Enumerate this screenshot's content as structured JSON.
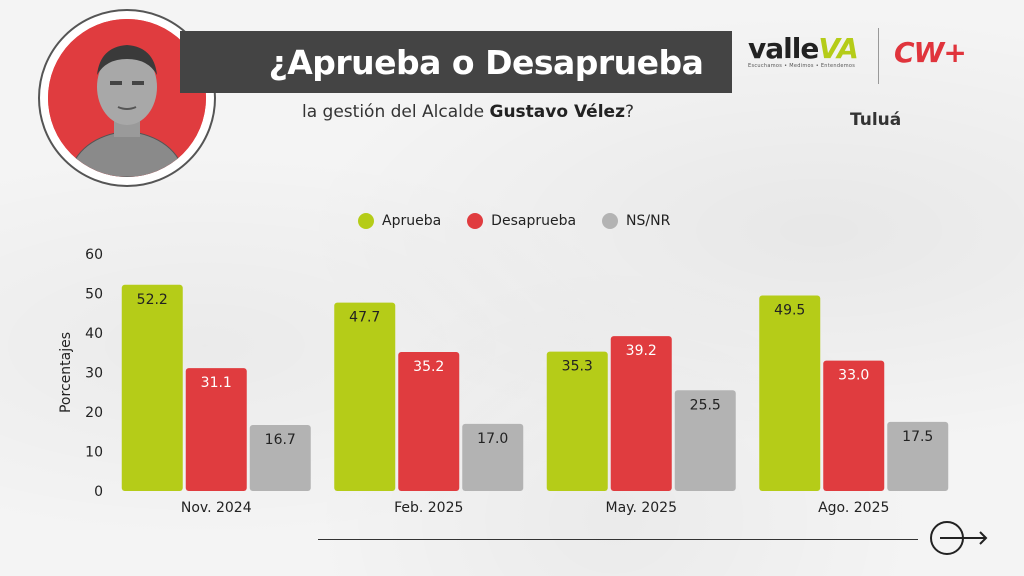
{
  "header": {
    "title": "¿Aprueba o Desaprueba",
    "subtitle_prefix": "la gestión del Alcalde ",
    "subtitle_name": "Gustavo Vélez",
    "subtitle_suffix": "?",
    "city": "Tuluá"
  },
  "logos": {
    "valle_word": "valle",
    "valle_va": "VA",
    "valle_tagline": "Escuchamos • Medimos • Entendemos",
    "cw": "CW+"
  },
  "colors": {
    "aprueba": "#b5cc18",
    "desaprueba": "#e03c3f",
    "nsnr": "#b3b3b3",
    "title_bar": "#444444"
  },
  "chart_data": {
    "type": "bar",
    "categories": [
      "Nov. 2024",
      "Feb. 2025",
      "May. 2025",
      "Ago. 2025"
    ],
    "series": [
      {
        "name": "Aprueba",
        "values": [
          52.2,
          47.7,
          35.3,
          49.5
        ]
      },
      {
        "name": "Desaprueba",
        "values": [
          31.1,
          35.2,
          39.2,
          33.0
        ]
      },
      {
        "name": "NS/NR",
        "values": [
          16.7,
          17.0,
          25.5,
          17.5
        ]
      }
    ],
    "ylabel": "Porcentajes",
    "ylim": [
      0,
      60
    ],
    "yticks": [
      0,
      10,
      20,
      30,
      40,
      50,
      60
    ],
    "legend_position": "top",
    "grid": false
  }
}
